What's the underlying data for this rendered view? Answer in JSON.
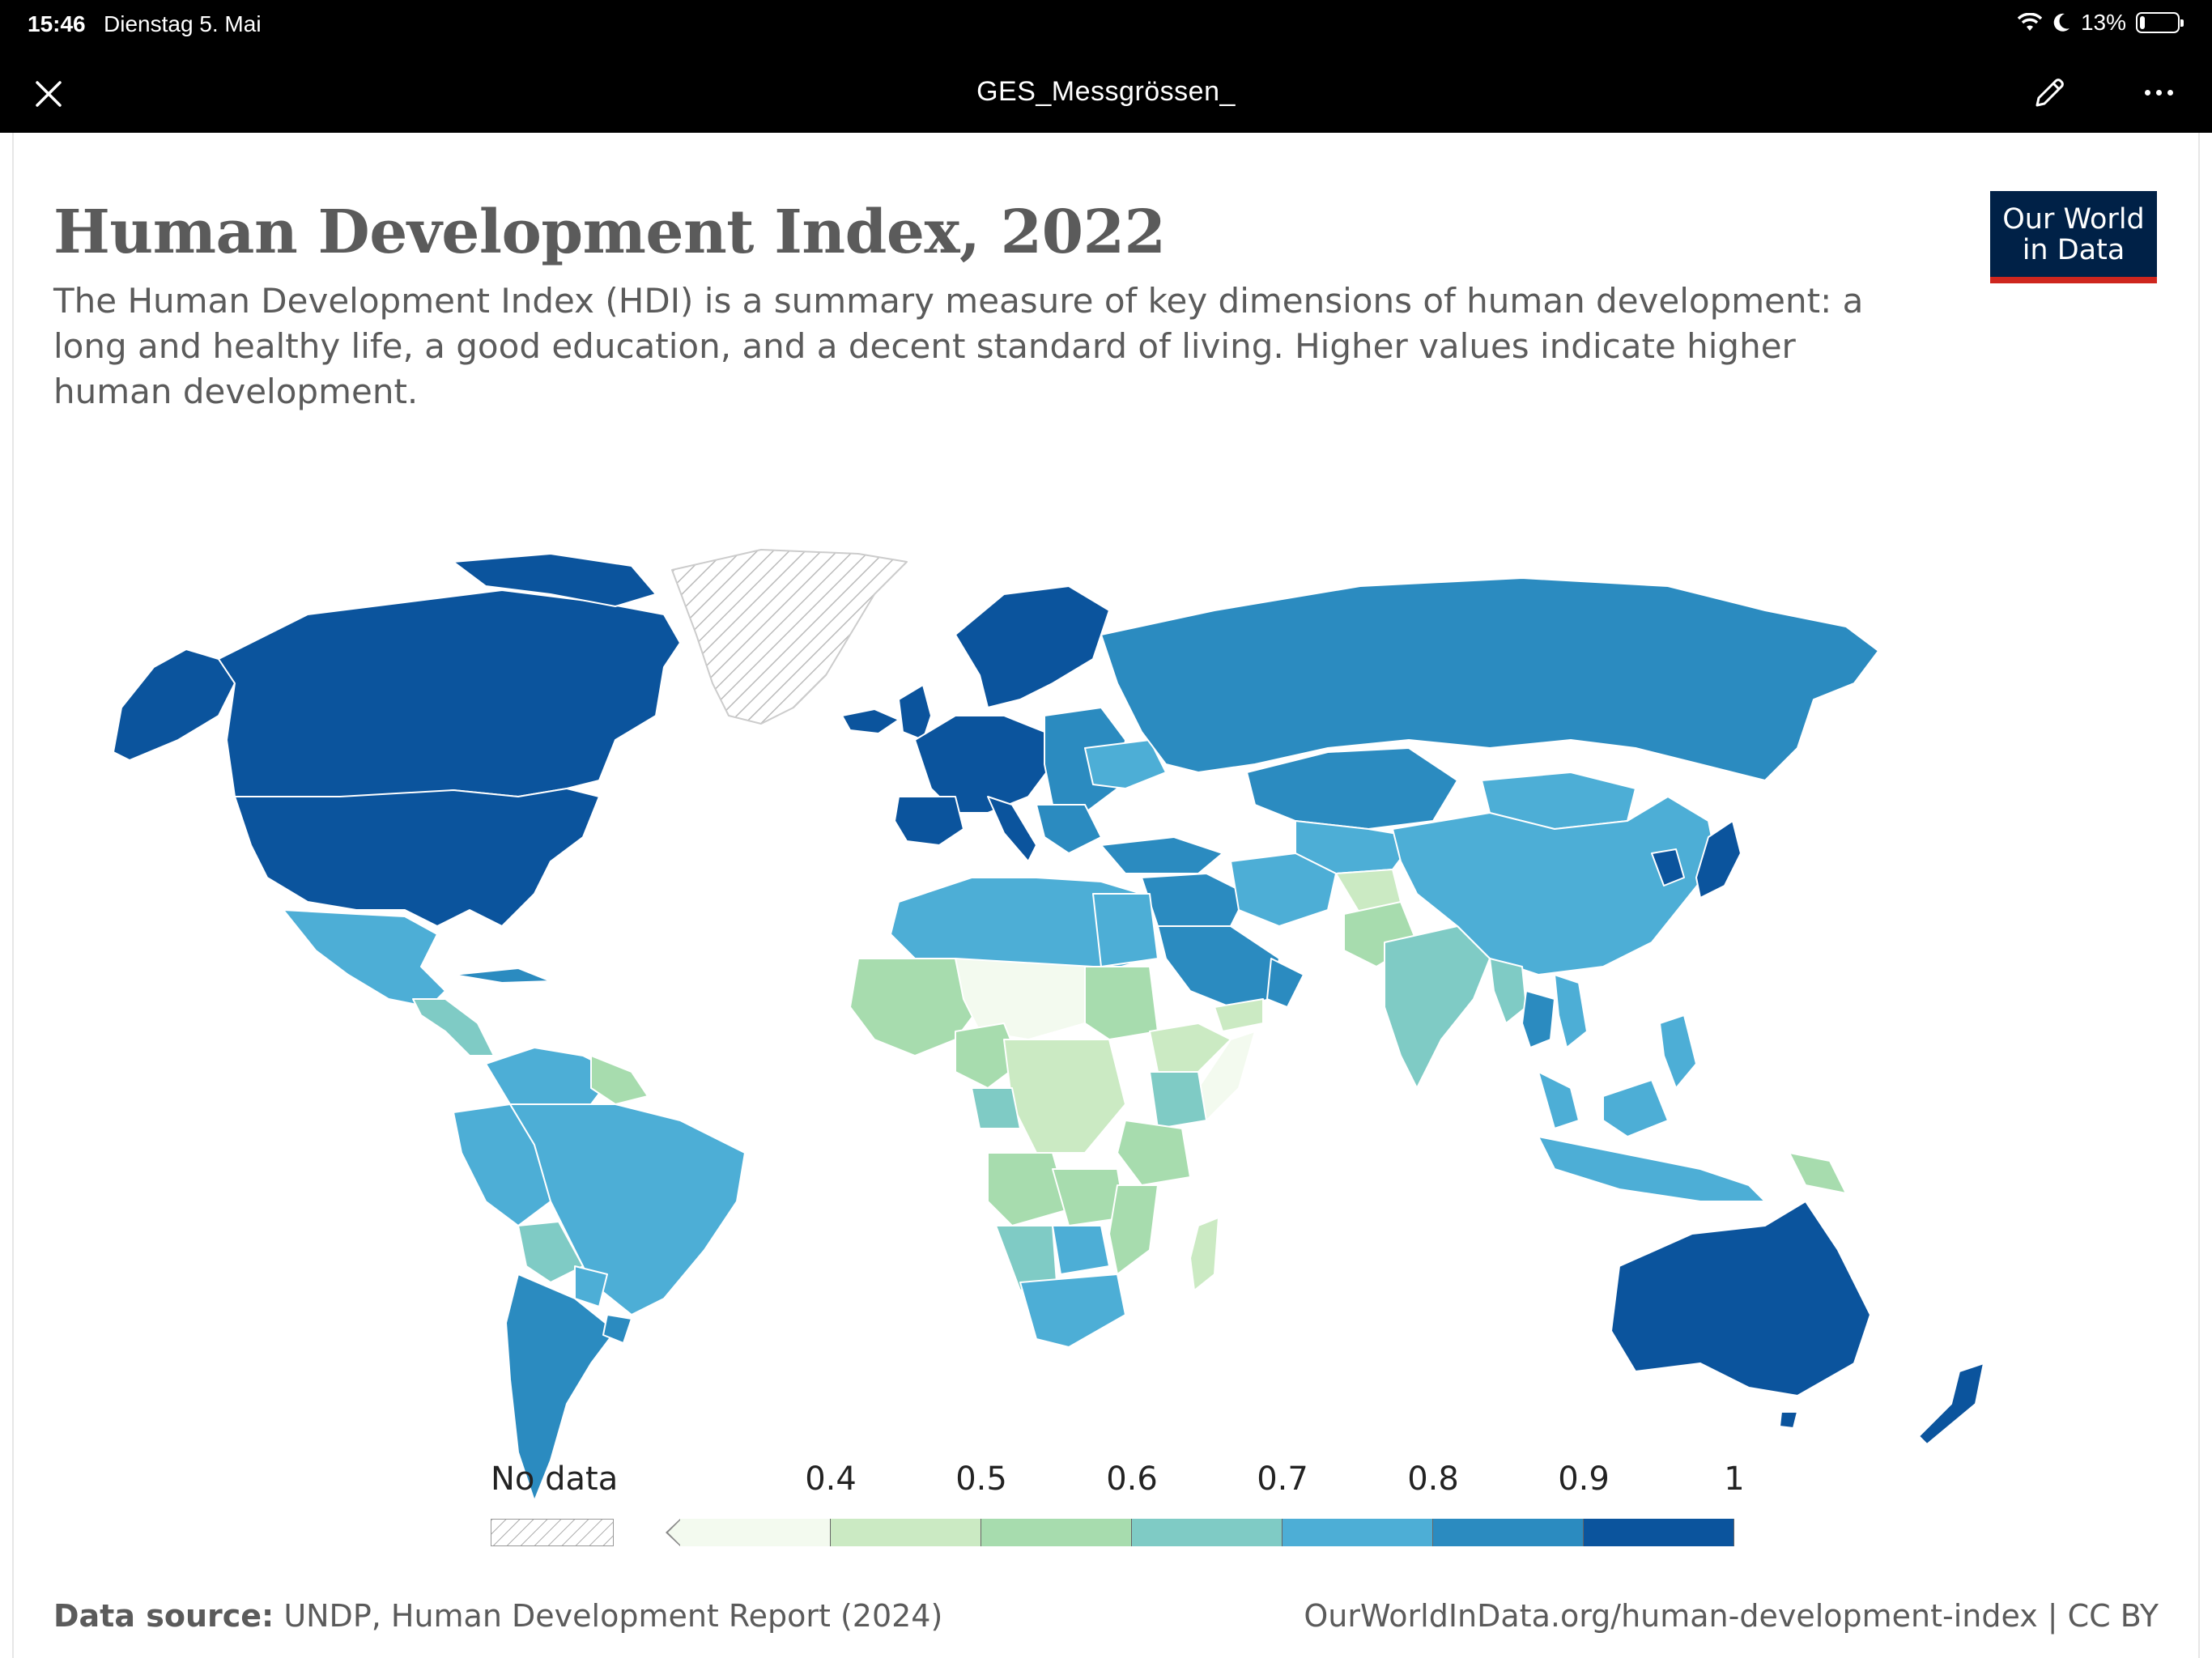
{
  "status_bar": {
    "time": "15:46",
    "date": "Dienstag 5. Mai",
    "battery": "13%",
    "battery_level": 0.13
  },
  "app_bar": {
    "document_title": "GES_Messgrössen_",
    "icons": [
      "close-icon",
      "edit-icon",
      "more-icon"
    ]
  },
  "chart": {
    "title": "Human Development Index, 2022",
    "subtitle": "The Human Development Index (HDI) is a summary measure of key dimensions of human development: a long and healthy life, a good education, and a decent standard of living. Higher values indicate higher human development.",
    "logo_line1": "Our World",
    "logo_line2": "in Data",
    "source_label": "Data source:",
    "source_text": " UNDP, Human Development Report (2024)",
    "url_text": "OurWorldInData.org/human-development-index | CC BY"
  },
  "legend": {
    "no_data_label": "No data",
    "ticks": [
      "0.4",
      "0.5",
      "0.6",
      "0.7",
      "0.8",
      "0.9",
      "1"
    ],
    "bins": [
      {
        "from": 0.3,
        "to": 0.4,
        "color": "#f3faef"
      },
      {
        "from": 0.4,
        "to": 0.5,
        "color": "#cbeac3"
      },
      {
        "from": 0.5,
        "to": 0.6,
        "color": "#a7dcae"
      },
      {
        "from": 0.6,
        "to": 0.7,
        "color": "#7fcbc5"
      },
      {
        "from": 0.7,
        "to": 0.8,
        "color": "#4daed6"
      },
      {
        "from": 0.8,
        "to": 0.9,
        "color": "#2b8bc0"
      },
      {
        "from": 0.9,
        "to": 1.0,
        "color": "#0b549d"
      }
    ]
  },
  "colors": {
    "top_bar": "#000000",
    "title_text": "#5b5b5b",
    "logo_bg": "#002147",
    "logo_accent": "#ce261e",
    "no_data": "#e6e6e6"
  }
}
